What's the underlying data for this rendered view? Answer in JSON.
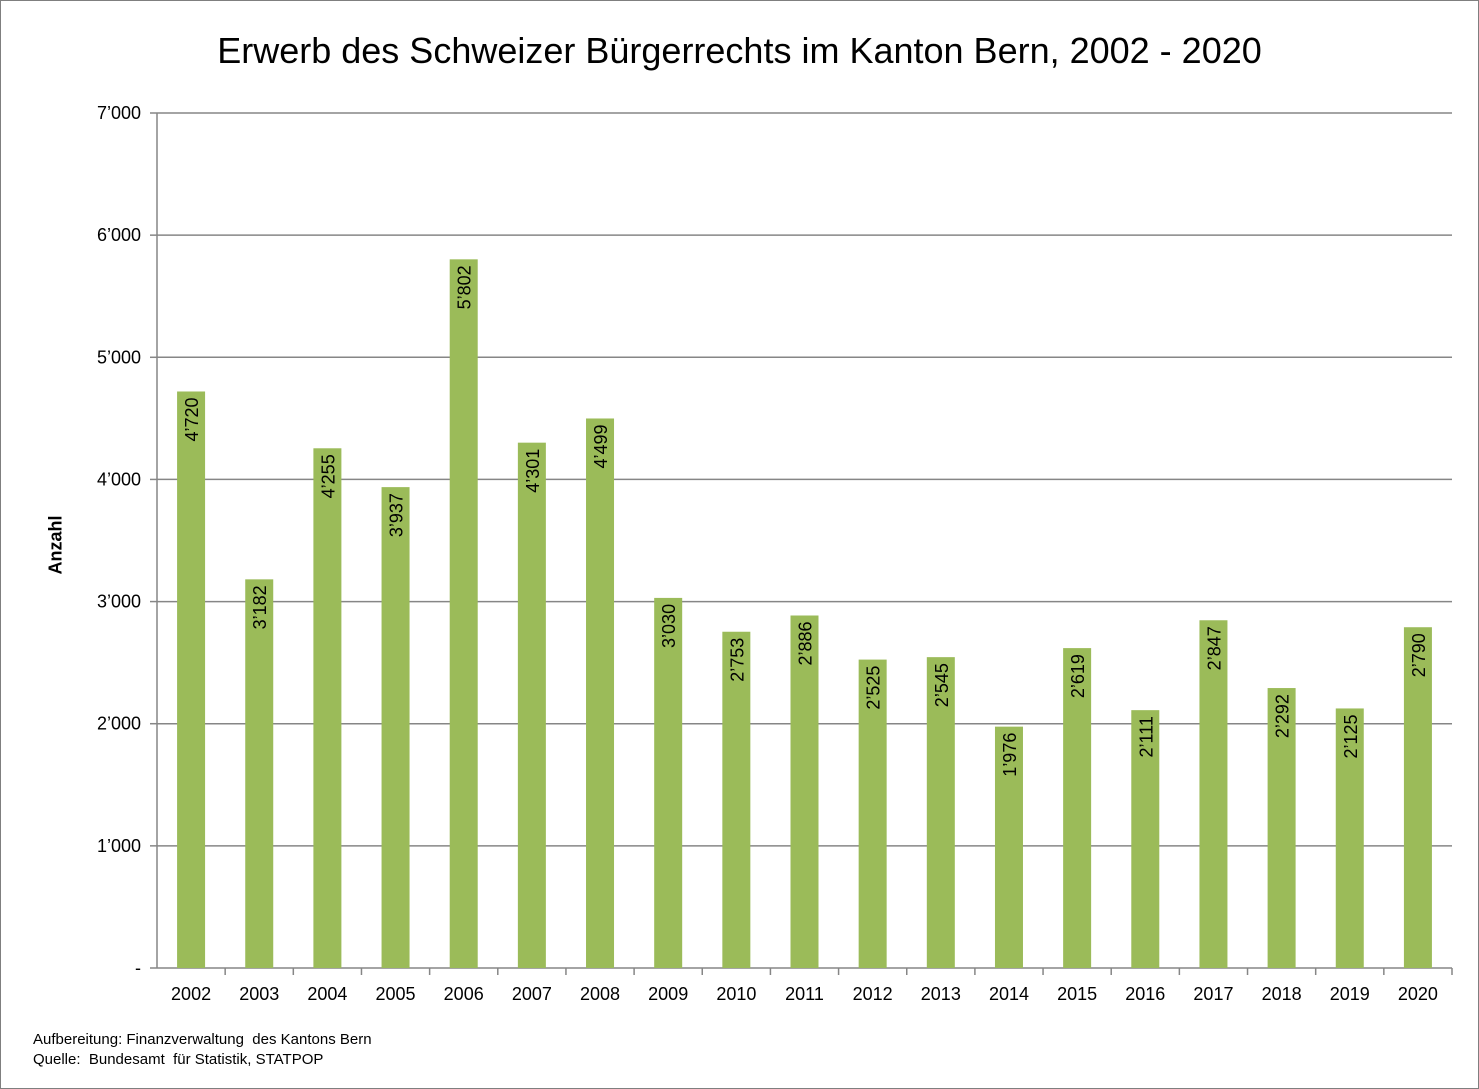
{
  "chart_data": {
    "type": "bar",
    "title": "Erwerb des Schweizer Bürgerrechts im Kanton Bern, 2002 - 2020",
    "xlabel": "",
    "ylabel": "Anzahl",
    "ylim": [
      0,
      7000
    ],
    "yticks": [
      {
        "value": 0,
        "label": "-"
      },
      {
        "value": 1000,
        "label": "1’000"
      },
      {
        "value": 2000,
        "label": "2’000"
      },
      {
        "value": 3000,
        "label": "3’000"
      },
      {
        "value": 4000,
        "label": "4’000"
      },
      {
        "value": 5000,
        "label": "5’000"
      },
      {
        "value": 6000,
        "label": "6’000"
      },
      {
        "value": 7000,
        "label": "7’000"
      }
    ],
    "grid": true,
    "legend": "none",
    "bar_color": "#9bbb59",
    "grid_color": "#868686",
    "categories": [
      "2002",
      "2003",
      "2004",
      "2005",
      "2006",
      "2007",
      "2008",
      "2009",
      "2010",
      "2011",
      "2012",
      "2013",
      "2014",
      "2015",
      "2016",
      "2017",
      "2018",
      "2019",
      "2020"
    ],
    "values": [
      4720,
      3182,
      4255,
      3937,
      5802,
      4301,
      4499,
      3030,
      2753,
      2886,
      2525,
      2545,
      1976,
      2619,
      2111,
      2847,
      2292,
      2125,
      2790
    ],
    "value_labels": [
      "4’720",
      "3’182",
      "4’255",
      "3’937",
      "5’802",
      "4’301",
      "4’499",
      "3’030",
      "2’753",
      "2’886",
      "2’525",
      "2’545",
      "1’976",
      "2’619",
      "2’111",
      "2’847",
      "2’292",
      "2’125",
      "2’790"
    ]
  },
  "footer": {
    "line1": "Aufbereitung: Finanzverwaltung  des Kantons Bern",
    "line2": "Quelle:  Bundesamt  für Statistik, STATPOP"
  }
}
